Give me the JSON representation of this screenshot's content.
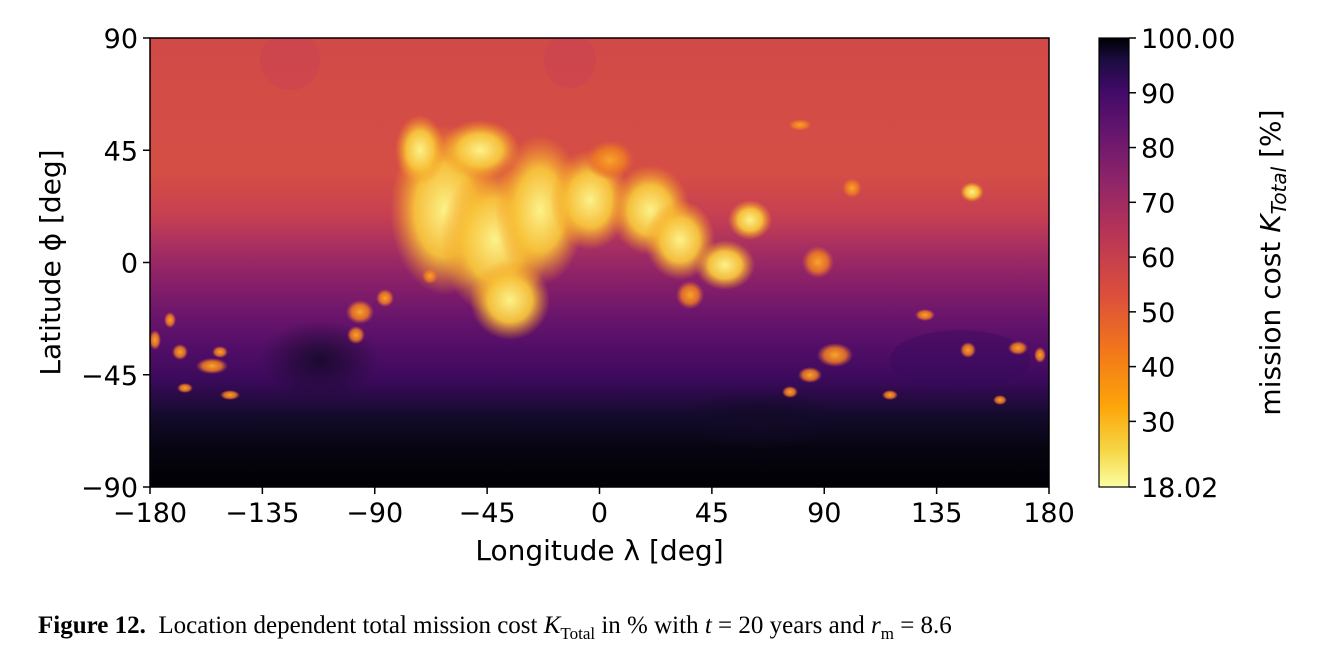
{
  "chart_data": {
    "type": "heatmap",
    "title": "",
    "xlabel": "Longitude λ [deg]",
    "ylabel": "Latitude ϕ [deg]",
    "xlim": [
      -180,
      180
    ],
    "ylim": [
      -90,
      90
    ],
    "xticks": [
      -180,
      -135,
      -90,
      -45,
      0,
      45,
      90,
      135,
      180
    ],
    "yticks": [
      90,
      45,
      0,
      -45,
      -90
    ],
    "xtick_labels": [
      "−180",
      "−135",
      "−90",
      "−45",
      "0",
      "45",
      "90",
      "135",
      "180"
    ],
    "ytick_labels": [
      "90",
      "45",
      "0",
      "−45",
      "−90"
    ],
    "colorbar": {
      "label": "mission cost K_Total [%]",
      "min": 18.02,
      "max": 100.0,
      "ticks": [
        100.0,
        90,
        80,
        70,
        60,
        50,
        40,
        30,
        18.02
      ],
      "tick_labels": [
        "100.00",
        "90",
        "80",
        "70",
        "60",
        "50",
        "40",
        "30",
        "18.02"
      ],
      "colormap": "inferno_r"
    },
    "lat_profile": [
      {
        "lat": 90,
        "value": 55
      },
      {
        "lat": 60,
        "value": 56
      },
      {
        "lat": 45,
        "value": 57
      },
      {
        "lat": 30,
        "value": 60
      },
      {
        "lat": 15,
        "value": 64
      },
      {
        "lat": 0,
        "value": 70
      },
      {
        "lat": -15,
        "value": 74
      },
      {
        "lat": -30,
        "value": 78
      },
      {
        "lat": -45,
        "value": 84
      },
      {
        "lat": -55,
        "value": 92
      },
      {
        "lat": -70,
        "value": 98
      },
      {
        "lat": -90,
        "value": 100
      }
    ],
    "low_cost_regions": [
      {
        "lon": -50,
        "lat": 20,
        "value": 22
      },
      {
        "lon": -20,
        "lat": 25,
        "value": 25
      },
      {
        "lon": 20,
        "lat": 15,
        "value": 25
      },
      {
        "lon": 55,
        "lat": 18,
        "value": 30
      },
      {
        "lon": -90,
        "lat": -20,
        "value": 40
      },
      {
        "lon": -160,
        "lat": -38,
        "value": 42
      },
      {
        "lon": 88,
        "lat": 0,
        "value": 42
      }
    ]
  },
  "caption": {
    "label": "Figure 12.",
    "text_1": "Location dependent total mission cost",
    "k_symbol": "K",
    "k_sub": "Total",
    "text_2": "in % with",
    "t_symbol": "t",
    "t_value": " = 20",
    "text_3": "years and",
    "r_symbol": "r",
    "r_sub": "m",
    "r_value": " = 8.6"
  }
}
